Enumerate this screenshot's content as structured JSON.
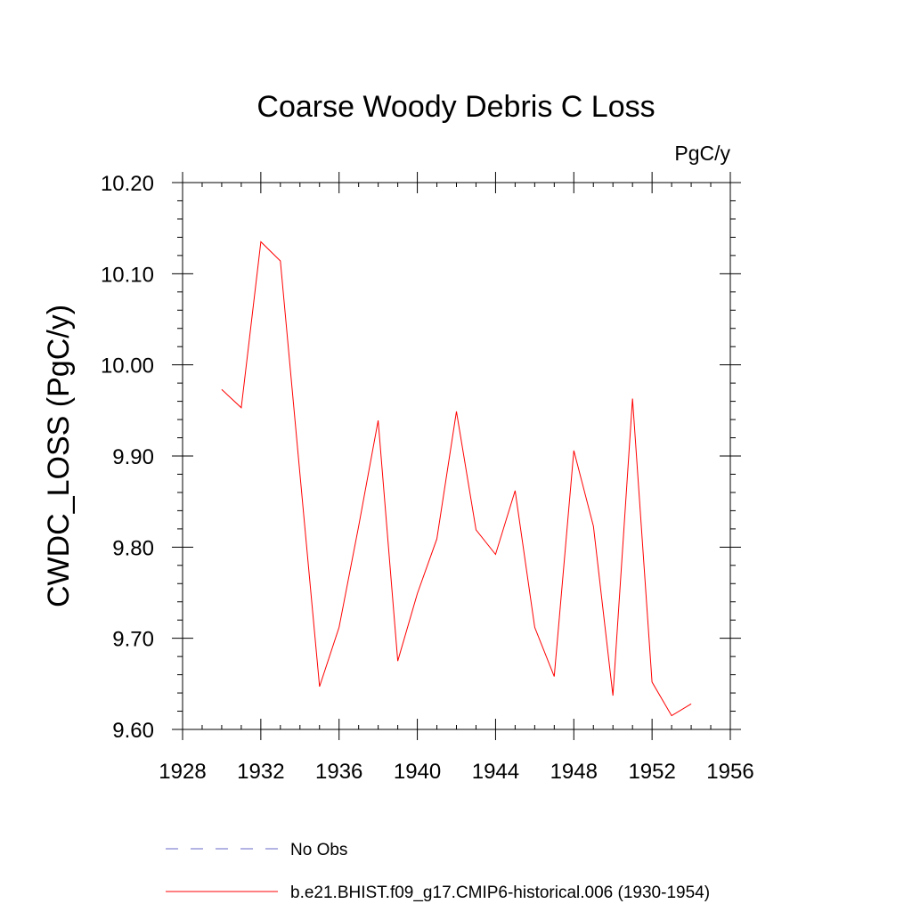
{
  "chart_data": {
    "type": "line",
    "title": "Coarse Woody Debris C Loss",
    "units_label": "PgC/y",
    "ylabel": "CWDC_LOSS  (PgC/y)",
    "xlabel": "",
    "xlim": [
      1928,
      1956
    ],
    "ylim": [
      9.6,
      10.2
    ],
    "xticks": [
      1928,
      1932,
      1936,
      1940,
      1944,
      1948,
      1952,
      1956
    ],
    "yticks": [
      9.6,
      9.7,
      9.8,
      9.9,
      10.0,
      10.1,
      10.2
    ],
    "ytick_labels": [
      "9.60",
      "9.70",
      "9.80",
      "9.90",
      "10.00",
      "10.10",
      "10.20"
    ],
    "grid": false,
    "legend_placement": "bottom",
    "series": [
      {
        "name": "b.e21.BHIST.f09_g17.CMIP6-historical.006 (1930-1954)",
        "color": "#ff0000",
        "style": "solid",
        "x": [
          1930,
          1931,
          1932,
          1933,
          1934,
          1935,
          1936,
          1937,
          1938,
          1939,
          1940,
          1941,
          1942,
          1943,
          1944,
          1945,
          1946,
          1947,
          1948,
          1949,
          1950,
          1951,
          1952,
          1953,
          1954
        ],
        "values": [
          9.973,
          9.953,
          10.135,
          10.114,
          9.88,
          9.647,
          9.712,
          9.823,
          9.939,
          9.675,
          9.749,
          9.809,
          9.949,
          9.819,
          9.792,
          9.862,
          9.712,
          9.658,
          9.906,
          9.823,
          9.637,
          9.963,
          9.652,
          9.615,
          9.628
        ]
      }
    ],
    "legend": [
      {
        "label": "No Obs",
        "color": "#6a6ac8",
        "style": "dashed"
      },
      {
        "label": "b.e21.BHIST.f09_g17.CMIP6-historical.006 (1930-1954)",
        "color": "#ff0000",
        "style": "solid"
      }
    ]
  }
}
